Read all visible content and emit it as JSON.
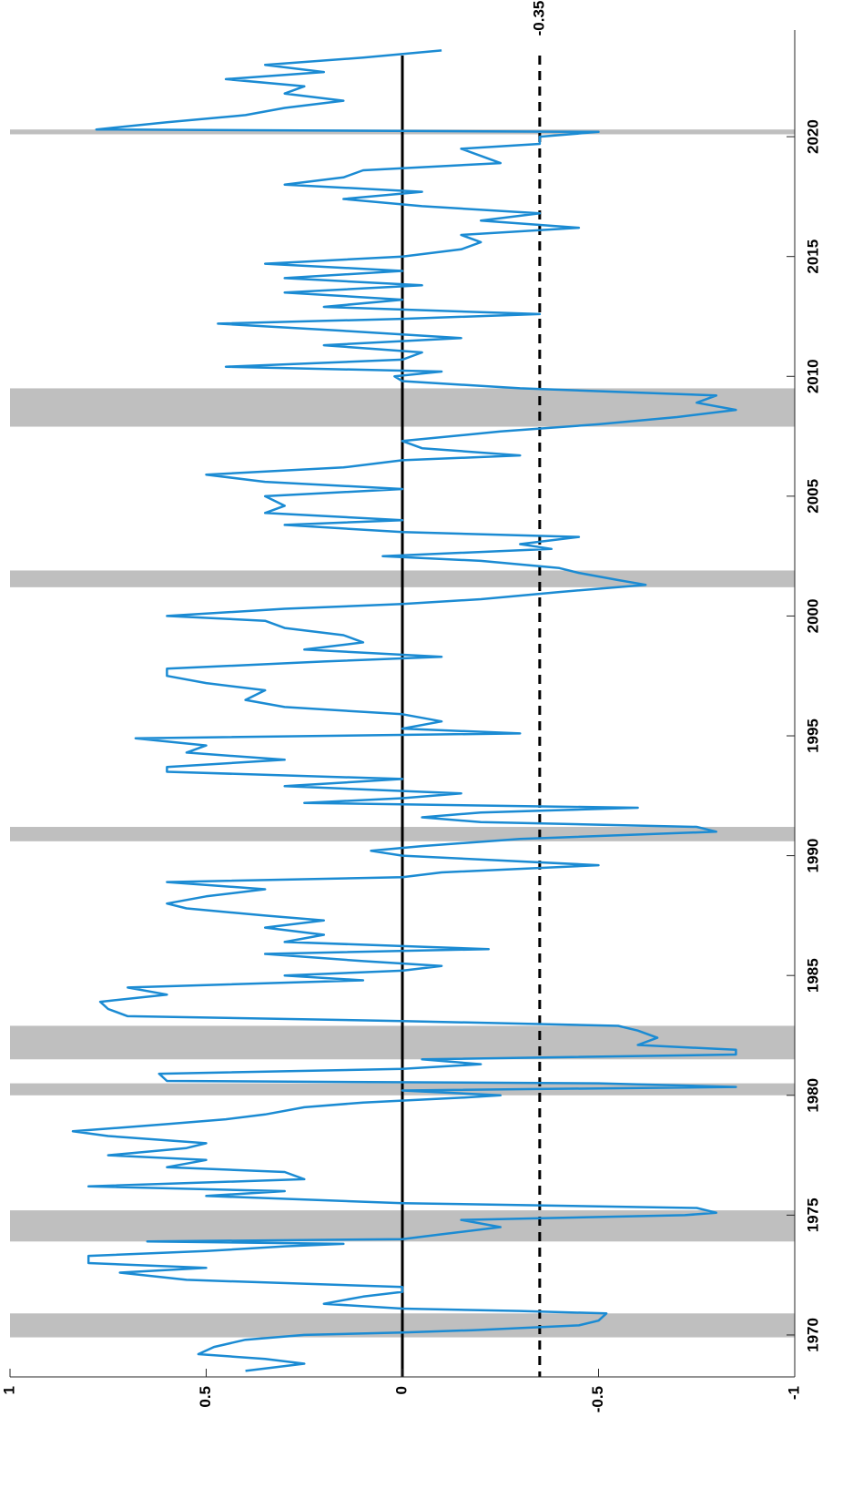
{
  "chart_data": {
    "type": "line",
    "x": [
      1968.5,
      1968.8,
      1969.0,
      1969.2,
      1969.5,
      1969.8,
      1970.0,
      1970.1,
      1970.2,
      1970.4,
      1970.6,
      1970.9,
      1971.0,
      1971.1,
      1971.3,
      1971.6,
      1971.8,
      1972.0,
      1972.3,
      1972.6,
      1972.8,
      1973.0,
      1973.3,
      1973.5,
      1973.7,
      1973.8,
      1973.9,
      1974.0,
      1974.2,
      1974.5,
      1974.8,
      1975.0,
      1975.1,
      1975.3,
      1975.5,
      1975.8,
      1976.0,
      1976.2,
      1976.5,
      1976.8,
      1977.0,
      1977.3,
      1977.5,
      1977.8,
      1978.0,
      1978.3,
      1978.5,
      1978.8,
      1979.0,
      1979.2,
      1979.5,
      1979.7,
      1979.9,
      1980.0,
      1980.2,
      1980.35,
      1980.5,
      1980.6,
      1980.9,
      1981.1,
      1981.3,
      1981.5,
      1981.7,
      1981.9,
      1982.1,
      1982.4,
      1982.7,
      1982.9,
      1983.1,
      1983.3,
      1983.6,
      1983.9,
      1984.2,
      1984.5,
      1984.8,
      1985.0,
      1985.2,
      1985.4,
      1985.6,
      1985.9,
      1986.1,
      1986.4,
      1986.7,
      1987.0,
      1987.3,
      1987.5,
      1987.8,
      1988.0,
      1988.3,
      1988.6,
      1988.9,
      1989.1,
      1989.3,
      1989.6,
      1989.8,
      1990.0,
      1990.2,
      1990.4,
      1990.7,
      1991.0,
      1991.2,
      1991.4,
      1991.6,
      1991.8,
      1992.0,
      1992.2,
      1992.4,
      1992.6,
      1992.9,
      1993.2,
      1993.5,
      1993.7,
      1994.0,
      1994.3,
      1994.6,
      1994.9,
      1995.1,
      1995.3,
      1995.6,
      1995.9,
      1996.2,
      1996.5,
      1996.9,
      1997.2,
      1997.5,
      1997.8,
      1998.1,
      1998.3,
      1998.6,
      1998.9,
      1999.2,
      1999.5,
      1999.8,
      2000.0,
      2000.3,
      2000.5,
      2000.7,
      2001.0,
      2001.3,
      2001.5,
      2001.8,
      2002.0,
      2002.3,
      2002.5,
      2002.8,
      2003.0,
      2003.3,
      2003.5,
      2003.8,
      2004.0,
      2004.3,
      2004.6,
      2005.0,
      2005.3,
      2005.6,
      2005.9,
      2006.2,
      2006.5,
      2006.7,
      2007.0,
      2007.3,
      2007.7,
      2008.0,
      2008.3,
      2008.6,
      2008.9,
      2009.2,
      2009.5,
      2009.8,
      2010.0,
      2010.2,
      2010.4,
      2010.7,
      2011.0,
      2011.3,
      2011.6,
      2011.9,
      2012.2,
      2012.4,
      2012.6,
      2012.9,
      2013.2,
      2013.5,
      2013.8,
      2014.1,
      2014.4,
      2014.7,
      2015.0,
      2015.3,
      2015.6,
      2015.9,
      2016.2,
      2016.5,
      2016.8,
      2017.1,
      2017.4,
      2017.7,
      2018.0,
      2018.3,
      2018.6,
      2018.9,
      2019.2,
      2019.5,
      2019.7,
      2020.0,
      2020.2,
      2020.3,
      2020.6,
      2020.9,
      2021.2,
      2021.5,
      2021.8,
      2022.1,
      2022.4,
      2022.7,
      2023.0,
      2023.3,
      2023.6
    ],
    "series": [
      {
        "color": "#1b8bd3",
        "values": [
          0.4,
          0.25,
          0.35,
          0.52,
          0.48,
          0.4,
          0.25,
          0.0,
          -0.18,
          -0.45,
          -0.5,
          -0.52,
          -0.3,
          0.0,
          0.2,
          0.1,
          0.0,
          0.0,
          0.55,
          0.72,
          0.5,
          0.8,
          0.8,
          0.5,
          0.3,
          0.15,
          0.65,
          0.0,
          -0.1,
          -0.25,
          -0.15,
          -0.72,
          -0.8,
          -0.75,
          0.0,
          0.5,
          0.3,
          0.8,
          0.25,
          0.3,
          0.6,
          0.5,
          0.75,
          0.55,
          0.5,
          0.75,
          0.84,
          0.6,
          0.45,
          0.35,
          0.25,
          0.1,
          -0.15,
          -0.25,
          0.0,
          -0.85,
          -0.5,
          0.6,
          0.62,
          0.0,
          -0.2,
          -0.05,
          -0.85,
          -0.85,
          -0.6,
          -0.65,
          -0.6,
          -0.55,
          0.0,
          0.7,
          0.75,
          0.77,
          0.6,
          0.7,
          0.1,
          0.3,
          0.0,
          -0.1,
          0.1,
          0.35,
          -0.22,
          0.3,
          0.2,
          0.35,
          0.2,
          0.35,
          0.55,
          0.6,
          0.5,
          0.35,
          0.6,
          0.0,
          -0.1,
          -0.5,
          -0.25,
          0.0,
          0.08,
          -0.05,
          -0.3,
          -0.8,
          -0.75,
          -0.2,
          -0.05,
          -0.2,
          -0.6,
          0.25,
          0.0,
          -0.15,
          0.3,
          0.0,
          0.6,
          0.6,
          0.3,
          0.55,
          0.5,
          0.68,
          -0.3,
          0.0,
          -0.1,
          0.0,
          0.3,
          0.4,
          0.35,
          0.5,
          0.6,
          0.6,
          0.2,
          -0.1,
          0.25,
          0.1,
          0.15,
          0.3,
          0.35,
          0.6,
          0.3,
          0.0,
          -0.2,
          -0.4,
          -0.62,
          -0.55,
          -0.45,
          -0.4,
          -0.2,
          0.05,
          -0.38,
          -0.3,
          -0.45,
          0.0,
          0.3,
          0.0,
          0.35,
          0.3,
          0.35,
          0.0,
          0.35,
          0.5,
          0.15,
          0.0,
          -0.3,
          -0.05,
          0.0,
          -0.25,
          -0.5,
          -0.7,
          -0.85,
          -0.75,
          -0.8,
          -0.3,
          0.0,
          0.02,
          -0.1,
          0.45,
          0.0,
          -0.05,
          0.2,
          -0.15,
          0.15,
          0.47,
          0.0,
          -0.35,
          0.2,
          0.0,
          0.3,
          -0.05,
          0.3,
          0.0,
          0.35,
          0.0,
          -0.15,
          -0.2,
          -0.15,
          -0.45,
          -0.2,
          -0.35,
          -0.05,
          0.15,
          -0.05,
          0.3,
          0.15,
          0.1,
          -0.25,
          -0.2,
          -0.15,
          -0.35,
          -0.35,
          -0.5,
          0.78,
          0.6,
          0.4,
          0.3,
          0.15,
          0.3,
          0.25,
          0.45,
          0.2,
          0.35,
          0.1,
          -0.1
        ]
      }
    ],
    "xlim": [
      1968.25,
      2024.45
    ],
    "xticks": [
      1970,
      1975,
      1980,
      1985,
      1990,
      1995,
      2000,
      2005,
      2010,
      2015,
      2020
    ],
    "ylim": [
      -1,
      1
    ],
    "yticks": [
      -1,
      -0.5,
      0,
      0.5,
      1
    ],
    "shaded_spans": [
      [
        1969.9,
        1970.9
      ],
      [
        1973.9,
        1975.2
      ],
      [
        1980.0,
        1980.5
      ],
      [
        1981.5,
        1982.9
      ],
      [
        1990.6,
        1991.2
      ],
      [
        2001.2,
        2001.9
      ],
      [
        2007.9,
        2009.5
      ],
      [
        2020.1,
        2020.3
      ]
    ],
    "shade_color": "#bfbfbf",
    "ref_lines": [
      {
        "value": 0,
        "style": "solid",
        "labeled": false
      },
      {
        "value": -0.35,
        "style": "dashed",
        "labeled": true
      }
    ]
  }
}
